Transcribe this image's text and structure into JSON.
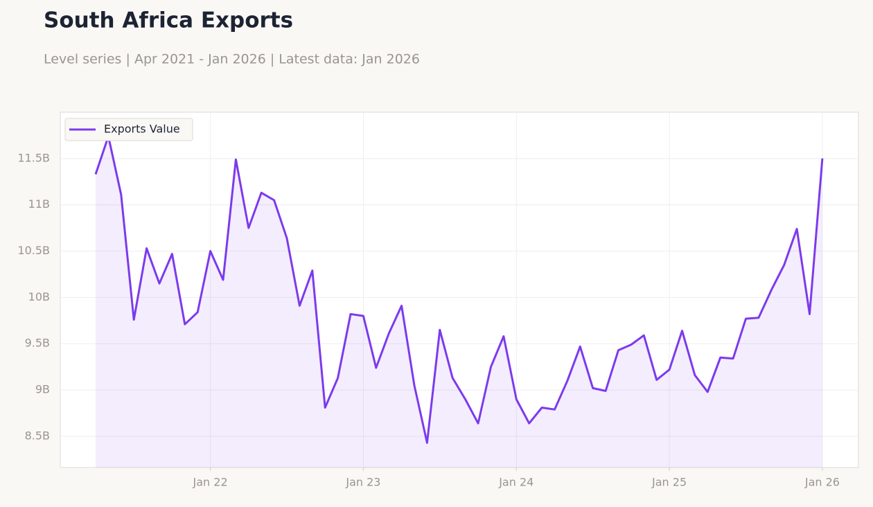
{
  "chart_data": {
    "type": "line",
    "title": "South Africa Exports",
    "subtitle": "Level series | Apr 2021 - Jan 2026 | Latest data: Jan 2026",
    "x": [
      "2021-04",
      "2021-05",
      "2021-06",
      "2021-07",
      "2021-08",
      "2021-09",
      "2021-10",
      "2021-11",
      "2021-12",
      "2022-01",
      "2022-02",
      "2022-03",
      "2022-04",
      "2022-05",
      "2022-06",
      "2022-07",
      "2022-08",
      "2022-09",
      "2022-10",
      "2022-11",
      "2022-12",
      "2023-01",
      "2023-02",
      "2023-03",
      "2023-04",
      "2023-05",
      "2023-06",
      "2023-07",
      "2023-08",
      "2023-09",
      "2023-10",
      "2023-11",
      "2023-12",
      "2024-01",
      "2024-02",
      "2024-03",
      "2024-04",
      "2024-05",
      "2024-06",
      "2024-07",
      "2024-08",
      "2024-09",
      "2024-10",
      "2024-11",
      "2024-12",
      "2025-01",
      "2025-02",
      "2025-03",
      "2025-04",
      "2025-05",
      "2025-06",
      "2025-07",
      "2025-08",
      "2025-09",
      "2025-10",
      "2025-11",
      "2025-12",
      "2026-01"
    ],
    "series": [
      {
        "name": "Exports Value",
        "color": "#7c3aed",
        "values": [
          11.33,
          11.74,
          11.11,
          9.76,
          10.53,
          10.15,
          10.47,
          9.71,
          9.84,
          10.5,
          10.19,
          11.49,
          10.75,
          11.13,
          11.05,
          10.64,
          9.91,
          10.29,
          8.81,
          9.13,
          9.82,
          9.8,
          9.24,
          9.61,
          9.91,
          9.05,
          8.43,
          9.65,
          9.13,
          8.9,
          8.64,
          9.25,
          9.58,
          8.9,
          8.64,
          8.81,
          8.79,
          9.1,
          9.47,
          9.02,
          8.99,
          9.43,
          9.49,
          9.59,
          9.11,
          9.22,
          9.64,
          9.16,
          8.98,
          9.35,
          9.34,
          9.77,
          9.78,
          10.08,
          10.35,
          10.74,
          9.82,
          11.5
        ]
      }
    ],
    "ylim": [
      8.163,
      12.0
    ],
    "yticks": [
      {
        "value": 8.5,
        "label": "8.5B"
      },
      {
        "value": 9,
        "label": "9B"
      },
      {
        "value": 9.5,
        "label": "9.5B"
      },
      {
        "value": 10,
        "label": "10B"
      },
      {
        "value": 10.5,
        "label": "10.5B"
      },
      {
        "value": 11,
        "label": "11B"
      },
      {
        "value": 11.5,
        "label": "11.5B"
      }
    ],
    "xticks": [
      {
        "value": "2022-01",
        "label": "Jan 22"
      },
      {
        "value": "2023-01",
        "label": "Jan 23"
      },
      {
        "value": "2024-01",
        "label": "Jan 24"
      },
      {
        "value": "2025-01",
        "label": "Jan 25"
      },
      {
        "value": "2026-01",
        "label": "Jan 26"
      }
    ],
    "grid": true,
    "legend": "upper left"
  }
}
